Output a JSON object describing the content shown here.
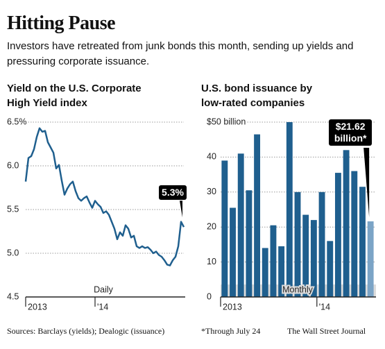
{
  "title": "Hitting Pause",
  "subtitle": "Investors have retreated from junk bonds this month, sending up yields and pressuring corporate issuance.",
  "chart_data": [
    {
      "type": "line",
      "title": "Yield on the U.S. Corporate High Yield index",
      "annotation": "Daily",
      "color": "#1f5f8e",
      "categories": [
        "2013",
        null,
        null,
        null,
        null,
        null,
        null,
        null,
        null,
        null,
        null,
        null,
        null,
        null,
        null,
        null,
        null,
        null,
        null,
        null,
        null,
        null,
        null,
        null,
        null,
        "'14",
        null,
        null,
        null,
        null,
        null,
        null,
        null,
        null,
        null,
        null,
        null,
        null,
        null,
        null,
        null,
        null,
        null,
        null,
        null,
        null,
        null,
        null,
        null,
        null,
        null,
        null,
        null,
        null,
        null,
        null,
        null,
        null
      ],
      "values": [
        5.82,
        6.09,
        6.11,
        6.19,
        6.33,
        6.43,
        6.39,
        6.4,
        6.27,
        6.21,
        6.15,
        5.97,
        6.01,
        5.83,
        5.67,
        5.74,
        5.79,
        5.82,
        5.71,
        5.63,
        5.6,
        5.63,
        5.65,
        5.58,
        5.52,
        5.6,
        5.56,
        5.53,
        5.46,
        5.48,
        5.44,
        5.36,
        5.28,
        5.16,
        5.24,
        5.2,
        5.32,
        5.28,
        5.18,
        5.2,
        5.08,
        5.06,
        5.08,
        5.06,
        5.07,
        5.04,
        5.0,
        5.02,
        4.98,
        4.96,
        4.92,
        4.87,
        4.86,
        4.92,
        4.96,
        5.08,
        5.36,
        5.3
      ],
      "value_labels": [
        null,
        null,
        null,
        null,
        null,
        null,
        null,
        null,
        null,
        null,
        null,
        null,
        null,
        null,
        null,
        null,
        null,
        null,
        null,
        null,
        null,
        null,
        null,
        null,
        null,
        null,
        null,
        null,
        null,
        null,
        null,
        null,
        null,
        null,
        null,
        null,
        null,
        null,
        null,
        null,
        null,
        null,
        null,
        null,
        null,
        null,
        null,
        null,
        null,
        null,
        null,
        null,
        null,
        null,
        null,
        null,
        null,
        "5.3%"
      ],
      "ylim": [
        4.5,
        6.5
      ],
      "yticks": [
        4.5,
        {
          "value": 5.0,
          "label": "5.0"
        },
        5.5,
        {
          "value": 6.0,
          "label": "6.0"
        },
        {
          "value": 6.5,
          "label": "6.5%"
        }
      ],
      "grid": true
    },
    {
      "type": "bar",
      "title": "U.S. bond issuance by low-rated companies",
      "annotation": "Monthly",
      "color": "#1f5f8e",
      "colors": [
        "#1f5f8e",
        "#1f5f8e",
        "#1f5f8e",
        "#1f5f8e",
        "#1f5f8e",
        "#1f5f8e",
        "#1f5f8e",
        "#1f5f8e",
        "#1f5f8e",
        "#1f5f8e",
        "#1f5f8e",
        "#1f5f8e",
        "#1f5f8e",
        "#1f5f8e",
        "#1f5f8e",
        "#1f5f8e",
        "#1f5f8e",
        "#1f5f8e",
        "#7ba4c6"
      ],
      "categories": [
        "2013",
        null,
        null,
        null,
        null,
        null,
        null,
        null,
        null,
        null,
        null,
        null,
        "'14",
        null,
        null,
        null,
        null,
        null,
        null
      ],
      "values": [
        39,
        25.5,
        41,
        30.5,
        46.5,
        14,
        20.5,
        14.5,
        50,
        30,
        23.5,
        22,
        30,
        16,
        35.5,
        42,
        36,
        31.5,
        21.62
      ],
      "value_labels": [
        null,
        null,
        null,
        null,
        null,
        null,
        null,
        null,
        null,
        null,
        null,
        null,
        null,
        null,
        null,
        null,
        null,
        null,
        "$21.62 billion*"
      ],
      "ylim": [
        0,
        50
      ],
      "yticks": [
        0,
        10,
        20,
        30,
        40,
        {
          "value": 50,
          "label": "$50 billion"
        }
      ],
      "grid": true
    }
  ],
  "footer": {
    "sources": "Sources: Barclays (yields); Dealogic (issuance)",
    "note": "*Through July 24",
    "credit": "The Wall Street Journal"
  }
}
